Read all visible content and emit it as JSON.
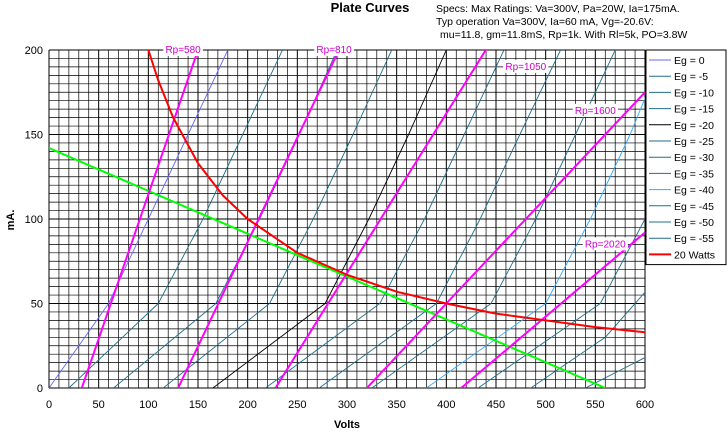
{
  "chart_data": {
    "type": "line",
    "title": "Plate Curves",
    "specs": [
      "Specs: Max Ratings: Va=300V, Pa=20W, Ia=175mA.",
      "Typ operation Va=300V, Ia=60 mA, Vg=-20.6V:",
      "mu=11.8, gm=11.8mS, Rp=1k. With Rl=5k, PO=3.8W"
    ],
    "xlabel": "Volts",
    "ylabel": "mA.",
    "xlim": [
      0,
      600
    ],
    "ylim": [
      0,
      200
    ],
    "xticks": [
      0,
      50,
      100,
      150,
      200,
      250,
      300,
      350,
      400,
      450,
      500,
      550,
      600
    ],
    "yticks": [
      0,
      50,
      100,
      150,
      200
    ],
    "grid": true,
    "legend_position": "right",
    "colors": {
      "grid": "#000000",
      "eg_curves": "#1f6f8b",
      "rp_lines": "#ff00ff",
      "power_curve": "#ff0000",
      "load_line": "#00ff00",
      "rp_label_text": "#cc00cc"
    },
    "eg_series": [
      {
        "name": "Eg = 0",
        "x": [
          0,
          60,
          100,
          140,
          180
        ],
        "y": [
          0,
          50,
          100,
          150,
          200
        ]
      },
      {
        "name": "Eg = -5",
        "x": [
          20,
          110,
          155,
          195,
          235
        ],
        "y": [
          0,
          50,
          100,
          150,
          200
        ]
      },
      {
        "name": "Eg = -10",
        "x": [
          65,
          168,
          212,
          252,
          290
        ],
        "y": [
          0,
          50,
          100,
          150,
          200
        ]
      },
      {
        "name": "Eg = -15",
        "x": [
          115,
          222,
          266,
          306,
          345
        ],
        "y": [
          0,
          50,
          100,
          150,
          200
        ]
      },
      {
        "name": "Eg = -20",
        "x": [
          165,
          278,
          322,
          362,
          400
        ],
        "y": [
          0,
          50,
          100,
          150,
          200
        ]
      },
      {
        "name": "Eg = -25",
        "x": [
          218,
          333,
          378,
          418,
          458
        ],
        "y": [
          0,
          50,
          100,
          150,
          200
        ]
      },
      {
        "name": "Eg = -30",
        "x": [
          272,
          390,
          434,
          474,
          515
        ],
        "y": [
          0,
          50,
          100,
          150,
          200
        ]
      },
      {
        "name": "Eg = -35",
        "x": [
          325,
          445,
          490,
          530,
          570
        ],
        "y": [
          0,
          50,
          100,
          150,
          200
        ]
      },
      {
        "name": "Eg = -40",
        "x": [
          380,
          500,
          545,
          585,
          620
        ],
        "y": [
          0,
          50,
          100,
          150,
          200
        ]
      },
      {
        "name": "Eg = -45",
        "x": [
          432,
          555,
          600
        ],
        "y": [
          0,
          50,
          100
        ]
      },
      {
        "name": "Eg = -50",
        "x": [
          485,
          560,
          605
        ],
        "y": [
          0,
          30,
          60
        ]
      },
      {
        "name": "Eg = -55",
        "x": [
          540,
          600,
          620
        ],
        "y": [
          0,
          18,
          28
        ]
      }
    ],
    "power_curve": {
      "name": "20 Watts",
      "x": [
        100,
        110,
        125,
        150,
        175,
        200,
        250,
        300,
        350,
        400,
        450,
        500,
        550,
        600
      ],
      "y": [
        200,
        182,
        160,
        133,
        114,
        100,
        80,
        67,
        57,
        50,
        44,
        40,
        36,
        33
      ]
    },
    "load_line": {
      "x": [
        0,
        560
      ],
      "y": [
        142,
        0
      ]
    },
    "rp_lines": [
      {
        "label": "Rp=580",
        "x": [
          33,
          150
        ],
        "y": [
          0,
          200
        ],
        "label_x": 135,
        "label_y": 200
      },
      {
        "label": "Rp=810",
        "x": [
          130,
          292
        ],
        "y": [
          0,
          200
        ],
        "label_x": 287,
        "label_y": 200
      },
      {
        "label": "Rp=1050",
        "x": [
          228,
          445
        ],
        "y": [
          0,
          205
        ],
        "label_x": 480,
        "label_y": 190
      },
      {
        "label": "Rp=1600",
        "x": [
          320,
          600
        ],
        "y": [
          0,
          175
        ],
        "label_x": 550,
        "label_y": 164
      },
      {
        "label": "Rp=2020",
        "x": [
          415,
          600
        ],
        "y": [
          0,
          92
        ],
        "label_x": 560,
        "label_y": 85
      }
    ],
    "legend": [
      {
        "label": "Eg = 0",
        "color": "#6666ff"
      },
      {
        "label": "Eg = -5",
        "color": "#1f6f8b"
      },
      {
        "label": "Eg = -10",
        "color": "#1f6f8b"
      },
      {
        "label": "Eg = -15",
        "color": "#1f6f8b"
      },
      {
        "label": "Eg = -20",
        "color": "#000000"
      },
      {
        "label": "Eg = -25",
        "color": "#1f6f8b"
      },
      {
        "label": "Eg = -30",
        "color": "#1f6f8b"
      },
      {
        "label": "Eg = -35",
        "color": "#1f6f8b"
      },
      {
        "label": "Eg = -40",
        "color": "#33aaff"
      },
      {
        "label": "Eg = -45",
        "color": "#1f6f8b"
      },
      {
        "label": "Eg = -50",
        "color": "#1f6f8b"
      },
      {
        "label": "Eg = -55",
        "color": "#1f6f8b"
      },
      {
        "label": "20 Watts",
        "color": "#ff0000"
      }
    ]
  }
}
